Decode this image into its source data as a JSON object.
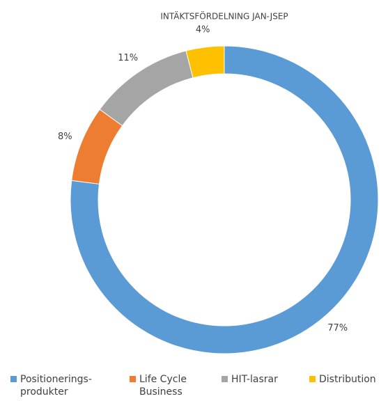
{
  "chart_data": {
    "type": "pie",
    "title": "INTÄKTSFÖRDELNING JAN-JSEP",
    "categories": [
      "Positionerings-produkter",
      "Life Cycle Business",
      "HIT-lasrar",
      "Distribution"
    ],
    "values": [
      77,
      8,
      11,
      4
    ],
    "value_labels": [
      "77%",
      "8%",
      "11%",
      "4%"
    ],
    "colors": [
      "#5b9bd5",
      "#ed7d31",
      "#a5a5a5",
      "#ffc000"
    ],
    "donut": true
  }
}
